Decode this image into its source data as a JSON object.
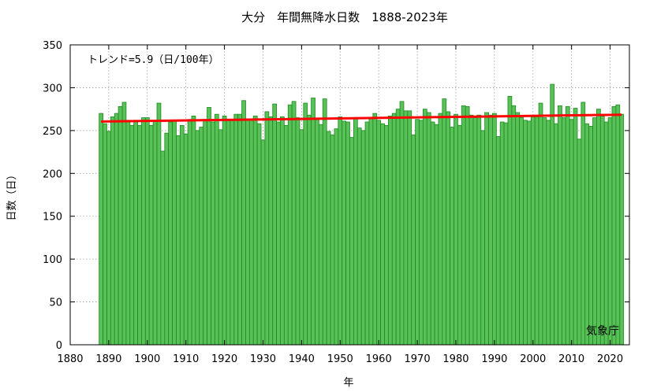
{
  "chart_data": {
    "type": "bar",
    "title": "大分　年間無降水日数　1888-2023年",
    "xlabel": "年",
    "ylabel": "日数（日）",
    "xlim": [
      1880,
      2025
    ],
    "ylim": [
      0,
      350
    ],
    "xticks": [
      1880,
      1890,
      1900,
      1910,
      1920,
      1930,
      1940,
      1950,
      1960,
      1970,
      1980,
      1990,
      2000,
      2010,
      2020
    ],
    "yticks": [
      0,
      50,
      100,
      150,
      200,
      250,
      300,
      350
    ],
    "grid": true,
    "bar_color": "#5ac05a",
    "bar_edge_color": "#1a8c1a",
    "trend_color": "#ff0000",
    "trend_label": "トレンド=5.9（日/100年）",
    "trend_line": {
      "x": [
        1888,
        2023
      ],
      "y": [
        260.5,
        268.5
      ]
    },
    "credit": "気象庁",
    "x": [
      1888,
      1889,
      1890,
      1891,
      1892,
      1893,
      1894,
      1895,
      1896,
      1897,
      1898,
      1899,
      1900,
      1901,
      1902,
      1903,
      1904,
      1905,
      1906,
      1907,
      1908,
      1909,
      1910,
      1911,
      1912,
      1913,
      1914,
      1915,
      1916,
      1917,
      1918,
      1919,
      1920,
      1921,
      1922,
      1923,
      1924,
      1925,
      1926,
      1927,
      1928,
      1929,
      1930,
      1931,
      1932,
      1933,
      1934,
      1935,
      1936,
      1937,
      1938,
      1939,
      1940,
      1941,
      1942,
      1943,
      1944,
      1945,
      1946,
      1947,
      1948,
      1949,
      1950,
      1951,
      1952,
      1953,
      1954,
      1955,
      1956,
      1957,
      1958,
      1959,
      1960,
      1961,
      1962,
      1963,
      1964,
      1965,
      1966,
      1967,
      1968,
      1969,
      1970,
      1971,
      1972,
      1973,
      1974,
      1975,
      1976,
      1977,
      1978,
      1979,
      1980,
      1981,
      1982,
      1983,
      1984,
      1985,
      1986,
      1987,
      1988,
      1989,
      1990,
      1991,
      1992,
      1993,
      1994,
      1995,
      1996,
      1997,
      1998,
      1999,
      2000,
      2001,
      2002,
      2003,
      2004,
      2005,
      2006,
      2007,
      2008,
      2009,
      2010,
      2011,
      2012,
      2013,
      2014,
      2015,
      2016,
      2017,
      2018,
      2019,
      2020,
      2021,
      2022,
      2023
    ],
    "values": [
      270,
      258,
      249,
      266,
      270,
      278,
      283,
      262,
      256,
      262,
      256,
      265,
      265,
      256,
      262,
      282,
      226,
      247,
      260,
      262,
      244,
      256,
      246,
      263,
      267,
      250,
      254,
      263,
      277,
      260,
      269,
      251,
      267,
      262,
      262,
      269,
      269,
      285,
      262,
      262,
      267,
      258,
      239,
      272,
      266,
      281,
      260,
      266,
      256,
      280,
      284,
      265,
      251,
      282,
      268,
      288,
      263,
      257,
      287,
      249,
      245,
      252,
      266,
      261,
      260,
      242,
      265,
      253,
      250,
      260,
      265,
      270,
      262,
      258,
      256,
      267,
      270,
      275,
      284,
      273,
      273,
      245,
      263,
      262,
      275,
      271,
      260,
      257,
      270,
      287,
      272,
      254,
      269,
      256,
      279,
      278,
      268,
      265,
      268,
      250,
      271,
      268,
      270,
      243,
      260,
      259,
      290,
      279,
      271,
      265,
      262,
      261,
      266,
      266,
      282,
      265,
      262,
      304,
      258,
      279,
      265,
      278,
      263,
      276,
      240,
      283,
      258,
      255,
      265,
      275,
      267,
      260,
      265,
      278,
      280,
      269
    ]
  }
}
